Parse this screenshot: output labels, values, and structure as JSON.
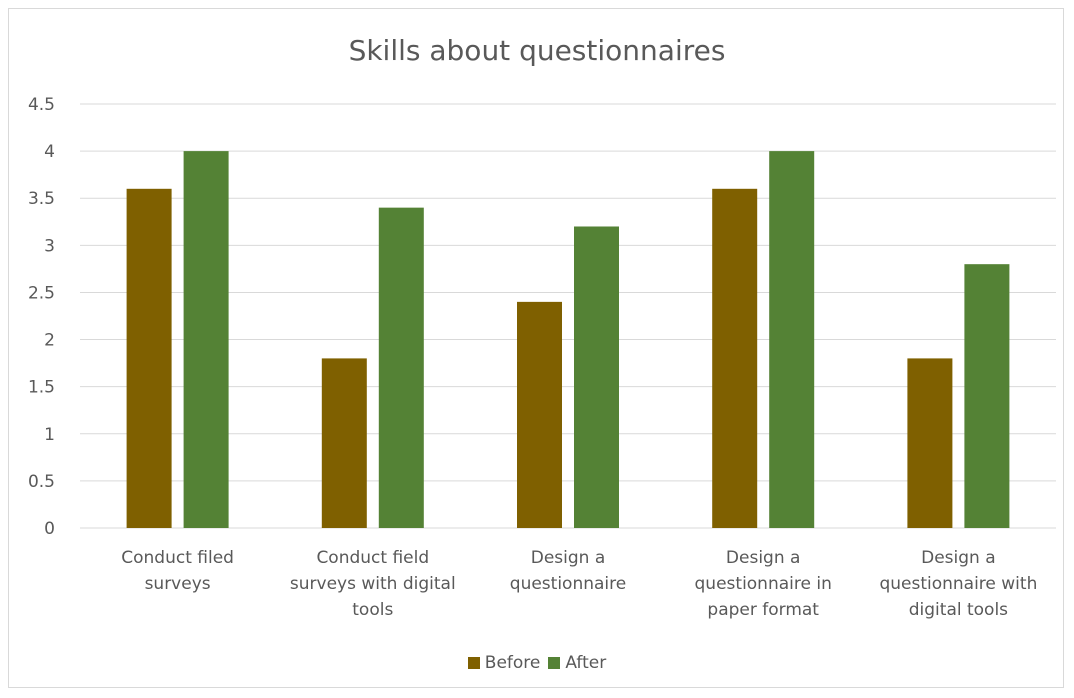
{
  "chart_data": {
    "type": "bar",
    "title": "Skills about questionnaires",
    "xlabel": "",
    "ylabel": "",
    "ylim": [
      0,
      4.5
    ],
    "yticks": [
      0,
      0.5,
      1,
      1.5,
      2,
      2.5,
      3,
      3.5,
      4,
      4.5
    ],
    "ytick_labels": [
      "0",
      "0.5",
      "1",
      "1.5",
      "2",
      "2.5",
      "3",
      "3.5",
      "4",
      "4.5"
    ],
    "grid": true,
    "legend_position": "bottom",
    "categories": [
      [
        "Conduct filed",
        "surveys"
      ],
      [
        "Conduct field",
        "surveys with digital",
        "tools"
      ],
      [
        "Design a",
        "questionnaire"
      ],
      [
        "Design a",
        "questionnaire in",
        "paper format"
      ],
      [
        "Design a",
        "questionnaire with",
        "digital tools"
      ]
    ],
    "series": [
      {
        "name": "Before",
        "color": "#7f6000",
        "values": [
          3.6,
          1.8,
          2.4,
          3.6,
          1.8
        ]
      },
      {
        "name": "After",
        "color": "#548235",
        "values": [
          4.0,
          3.4,
          3.2,
          4.0,
          2.8
        ]
      }
    ]
  }
}
